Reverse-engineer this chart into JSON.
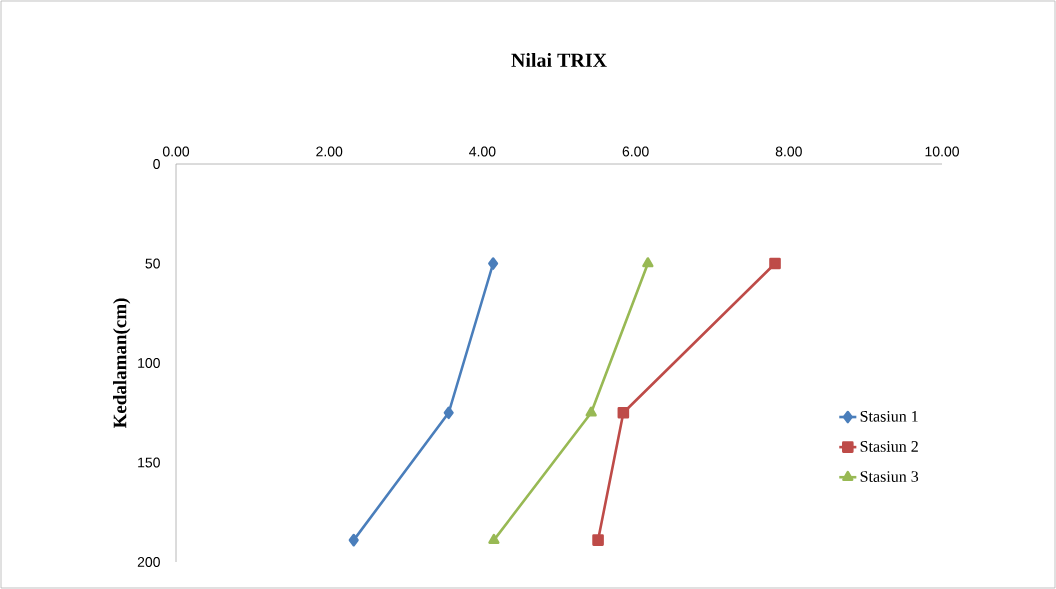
{
  "chart_data": {
    "type": "line",
    "title": "Nilai TRIX",
    "ylabel": "Kedalaman(cm)",
    "xlim": [
      0,
      10
    ],
    "xticks": [
      {
        "value": 0,
        "label": "0.00"
      },
      {
        "value": 2,
        "label": "2.00"
      },
      {
        "value": 4,
        "label": "4.00"
      },
      {
        "value": 6,
        "label": "6.00"
      },
      {
        "value": 8,
        "label": "8.00"
      },
      {
        "value": 10,
        "label": "10.00"
      }
    ],
    "ylim": [
      200,
      0
    ],
    "yticks": [
      0,
      50,
      100,
      150,
      200
    ],
    "legend": "right",
    "series": [
      {
        "name": "Stasiun 1",
        "color": "#4a7ebb",
        "marker": "diamond",
        "x": [
          4.14,
          3.56,
          2.32
        ],
        "values": [
          50,
          125,
          189
        ]
      },
      {
        "name": "Stasiun 2",
        "color": "#be4b48",
        "marker": "square",
        "x": [
          7.82,
          5.84,
          5.51
        ],
        "values": [
          50,
          125,
          189
        ]
      },
      {
        "name": "Stasiun 3",
        "color": "#98b954",
        "marker": "triangle",
        "x": [
          6.16,
          5.42,
          4.15
        ],
        "values": [
          50,
          125,
          189
        ]
      }
    ]
  }
}
